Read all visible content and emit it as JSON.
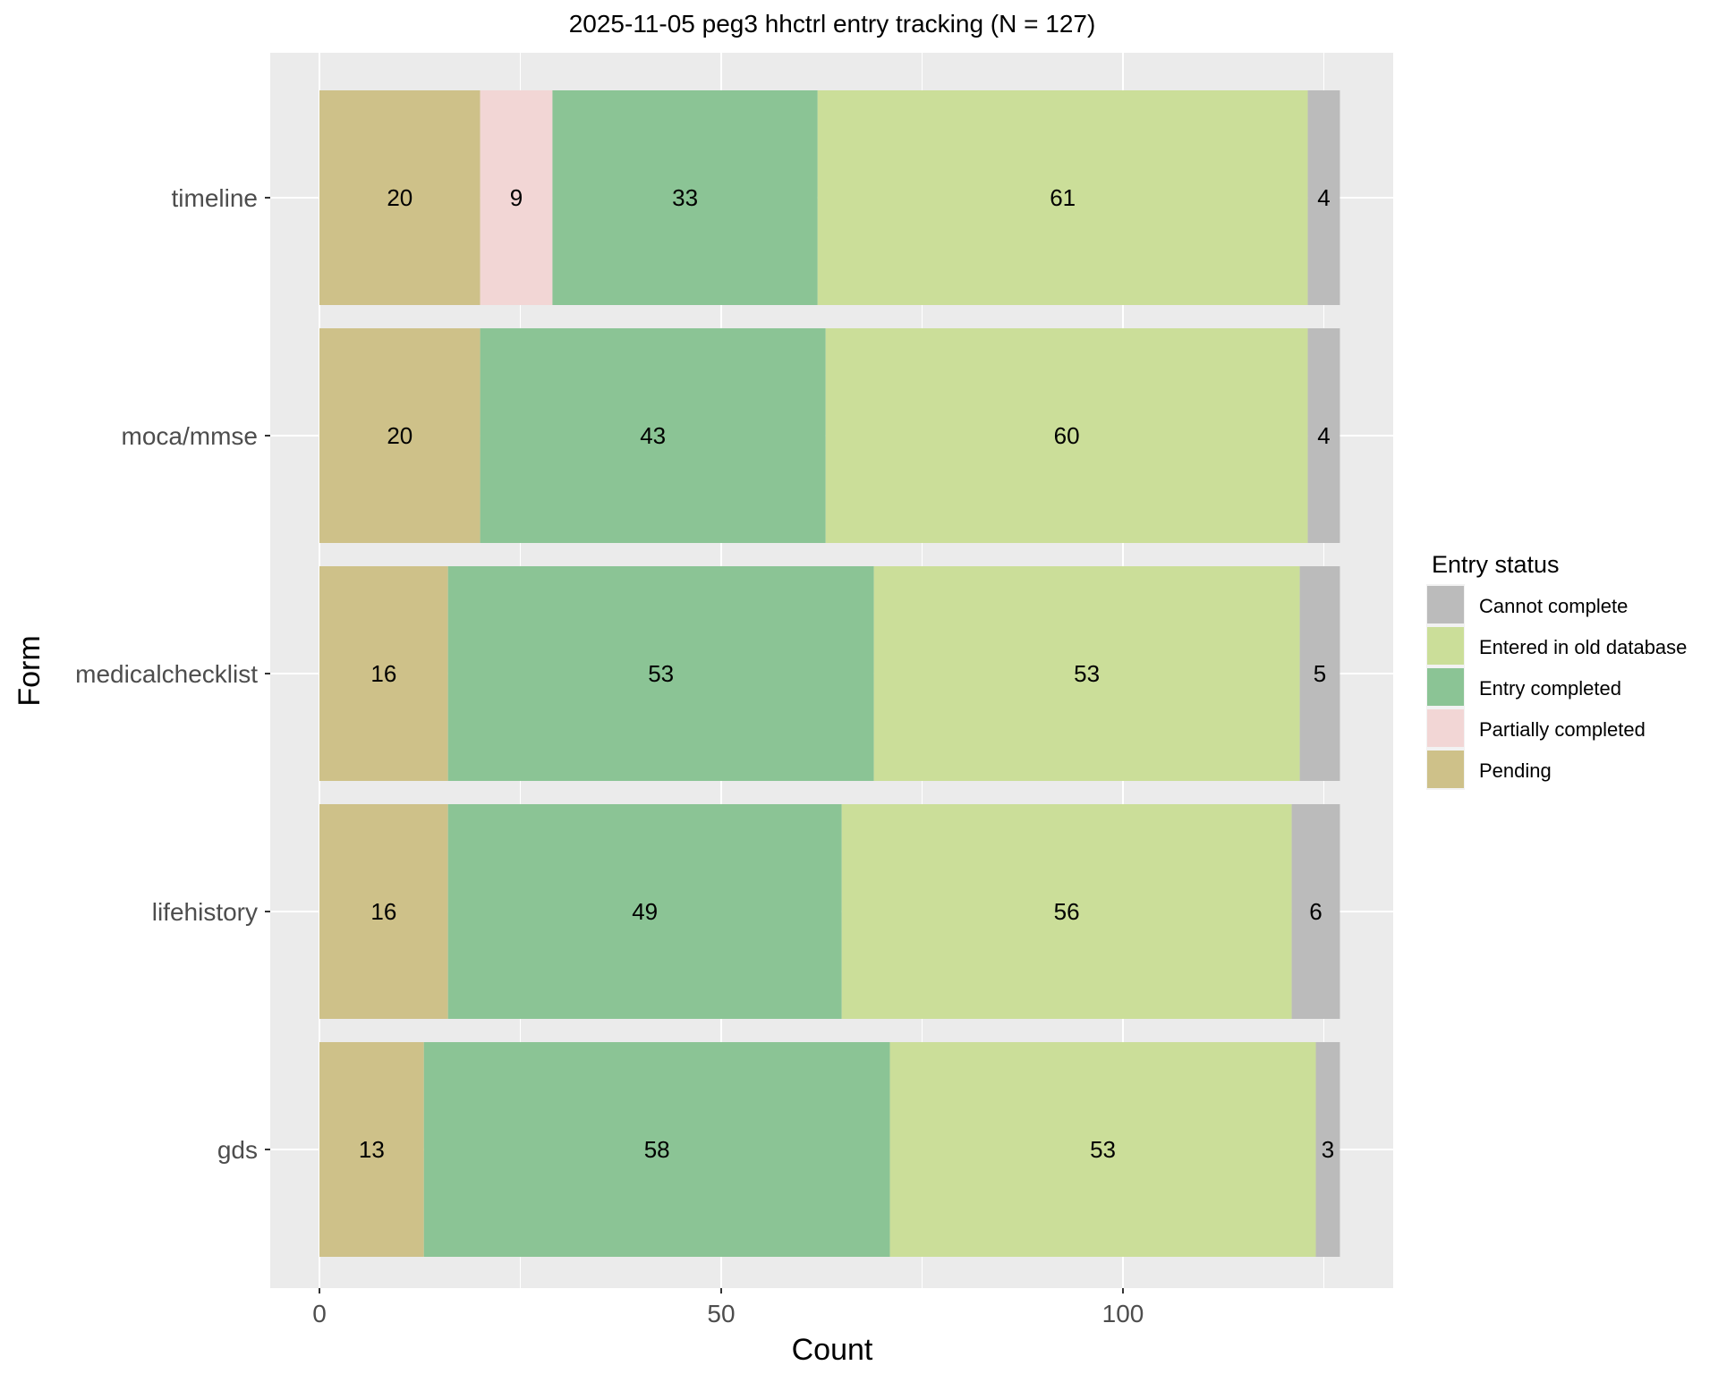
{
  "chart_data": {
    "type": "bar",
    "orientation": "horizontal",
    "stacked": true,
    "title": "2025-11-05 peg3 hhctrl entry tracking (N = 127)",
    "xlabel": "Count",
    "ylabel": "Form",
    "xlim": [
      -12.5,
      133.5
    ],
    "xticks": [
      0,
      50,
      100
    ],
    "grid": true,
    "legend_title": "Entry status",
    "legend_position": "right",
    "categories": [
      "timeline",
      "moca/mmse",
      "medicalchecklist",
      "lifehistory",
      "gds"
    ],
    "series": [
      {
        "name": "Pending",
        "color": "#CEC189",
        "values": [
          20,
          20,
          16,
          16,
          13
        ]
      },
      {
        "name": "Partially completed",
        "color": "#F2D6D5",
        "values": [
          9,
          0,
          0,
          0,
          0
        ]
      },
      {
        "name": "Entry completed",
        "color": "#8BC495",
        "values": [
          33,
          43,
          53,
          49,
          58
        ]
      },
      {
        "name": "Entered in old database",
        "color": "#CBDE99",
        "values": [
          61,
          60,
          53,
          56,
          53
        ]
      },
      {
        "name": "Cannot complete",
        "color": "#BBBBBB",
        "values": [
          4,
          4,
          5,
          6,
          3
        ]
      }
    ],
    "legend_order": [
      "Cannot complete",
      "Entered in old database",
      "Entry completed",
      "Partially completed",
      "Pending"
    ]
  }
}
